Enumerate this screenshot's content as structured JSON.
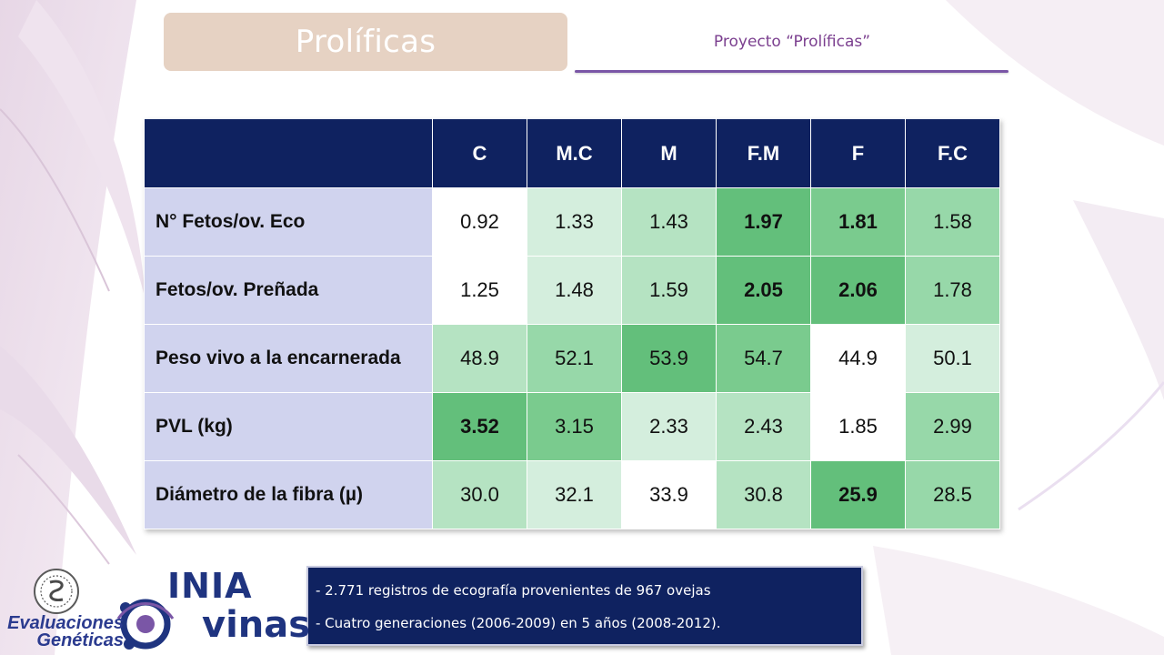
{
  "header": {
    "title": "Prolíficas",
    "subtitle": "Proyecto “Prolíficas”"
  },
  "table": {
    "columns": [
      "C",
      "M.C",
      "M",
      "F.M",
      "F",
      "F.C"
    ],
    "rows": [
      {
        "label": "N° Fetos/ov. Eco",
        "cells": [
          {
            "v": "0.92",
            "shade": 0,
            "bold": false
          },
          {
            "v": "1.33",
            "shade": 1,
            "bold": false
          },
          {
            "v": "1.43",
            "shade": 2,
            "bold": false
          },
          {
            "v": "1.97",
            "shade": 5,
            "bold": true
          },
          {
            "v": "1.81",
            "shade": 4,
            "bold": true
          },
          {
            "v": "1.58",
            "shade": 3,
            "bold": false
          }
        ]
      },
      {
        "label": "Fetos/ov. Preñada",
        "cells": [
          {
            "v": "1.25",
            "shade": 0,
            "bold": false
          },
          {
            "v": "1.48",
            "shade": 1,
            "bold": false
          },
          {
            "v": "1.59",
            "shade": 2,
            "bold": false
          },
          {
            "v": "2.05",
            "shade": 5,
            "bold": true
          },
          {
            "v": "2.06",
            "shade": 5,
            "bold": true
          },
          {
            "v": "1.78",
            "shade": 3,
            "bold": false
          }
        ]
      },
      {
        "label": "Peso vivo a la encarnerada",
        "cells": [
          {
            "v": "48.9",
            "shade": 2,
            "bold": false
          },
          {
            "v": "52.1",
            "shade": 3,
            "bold": false
          },
          {
            "v": "53.9",
            "shade": 5,
            "bold": false
          },
          {
            "v": "54.7",
            "shade": 4,
            "bold": false
          },
          {
            "v": "44.9",
            "shade": 0,
            "bold": false
          },
          {
            "v": "50.1",
            "shade": 1,
            "bold": false
          }
        ]
      },
      {
        "label": "PVL (kg)",
        "cells": [
          {
            "v": "3.52",
            "shade": 5,
            "bold": true
          },
          {
            "v": "3.15",
            "shade": 4,
            "bold": false
          },
          {
            "v": "2.33",
            "shade": 1,
            "bold": false
          },
          {
            "v": "2.43",
            "shade": 2,
            "bold": false
          },
          {
            "v": "1.85",
            "shade": 0,
            "bold": false
          },
          {
            "v": "2.99",
            "shade": 3,
            "bold": false
          }
        ]
      },
      {
        "label": "Diámetro de la fibra (µ)",
        "cells": [
          {
            "v": "30.0",
            "shade": 2,
            "bold": false
          },
          {
            "v": "32.1",
            "shade": 1,
            "bold": false
          },
          {
            "v": "33.9",
            "shade": 0,
            "bold": false
          },
          {
            "v": "30.8",
            "shade": 2,
            "bold": false
          },
          {
            "v": "25.9",
            "shade": 5,
            "bold": true
          },
          {
            "v": "28.5",
            "shade": 3,
            "bold": false
          }
        ]
      }
    ]
  },
  "notes": [
    "-  2.771 registros de ecografía provenientes de 967 ovejas",
    "-  Cuatro generaciones (2006-2009) en 5 años (2008-2012)."
  ],
  "logos": {
    "evaluaciones": [
      "Evaluaciones",
      "Genéticas"
    ],
    "inia": "INIA",
    "ovinas": "vinas"
  },
  "colors": {
    "header_bg": "#0f2260",
    "row_label_bg": "#d0d3ee",
    "shades": [
      "#ffffff",
      "#d4eedd",
      "#b5e3c2",
      "#97d8a9",
      "#7acb8e",
      "#63bf7b"
    ],
    "title_box": "#e6d2c3",
    "subtitle_text": "#7b3f8f"
  }
}
